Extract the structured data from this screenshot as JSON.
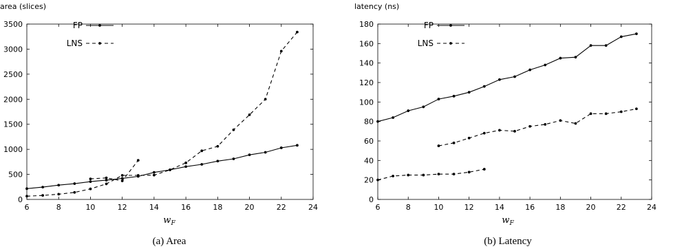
{
  "chart_data": [
    {
      "type": "line",
      "ylabel": "area (slices)",
      "xlabel": "w",
      "xlabel_sub": "F",
      "caption": "(a)  Area",
      "xlim": [
        6,
        24
      ],
      "ylim": [
        0,
        3500
      ],
      "xticks": [
        6,
        8,
        10,
        12,
        14,
        16,
        18,
        20,
        22,
        24
      ],
      "yticks": [
        0,
        500,
        1000,
        1500,
        2000,
        2500,
        3000,
        3500
      ],
      "legend_position": "top-left",
      "series": [
        {
          "name": "FP",
          "style": "solid",
          "segments": [
            [
              [
                6,
                215
              ],
              [
                7,
                245
              ],
              [
                8,
                285
              ],
              [
                9,
                315
              ],
              [
                10,
                355
              ],
              [
                11,
                385
              ],
              [
                12,
                420
              ],
              [
                13,
                460
              ],
              [
                14,
                540
              ],
              [
                15,
                590
              ],
              [
                16,
                655
              ],
              [
                17,
                700
              ],
              [
                18,
                765
              ],
              [
                19,
                810
              ],
              [
                20,
                890
              ],
              [
                21,
                940
              ],
              [
                22,
                1030
              ],
              [
                23,
                1080
              ]
            ]
          ]
        },
        {
          "name": "LNS",
          "style": "dashed",
          "segments": [
            [
              [
                6,
                65
              ],
              [
                7,
                80
              ],
              [
                8,
                105
              ],
              [
                9,
                140
              ],
              [
                10,
                210
              ],
              [
                11,
                310
              ],
              [
                12,
                480
              ],
              [
                13,
                480
              ],
              [
                14,
                485
              ],
              [
                15,
                590
              ],
              [
                16,
                730
              ],
              [
                17,
                970
              ],
              [
                18,
                1060
              ],
              [
                19,
                1390
              ],
              [
                20,
                1690
              ],
              [
                21,
                2000
              ],
              [
                22,
                2960
              ],
              [
                23,
                3340
              ]
            ],
            [
              [
                10,
                410
              ],
              [
                11,
                430
              ],
              [
                12,
                370
              ],
              [
                13,
                780
              ]
            ]
          ]
        }
      ]
    },
    {
      "type": "line",
      "ylabel": "latency (ns)",
      "xlabel": "w",
      "xlabel_sub": "F",
      "caption": "(b)  Latency",
      "xlim": [
        6,
        24
      ],
      "ylim": [
        0,
        180
      ],
      "xticks": [
        6,
        8,
        10,
        12,
        14,
        16,
        18,
        20,
        22,
        24
      ],
      "yticks": [
        0,
        20,
        40,
        60,
        80,
        100,
        120,
        140,
        160,
        180
      ],
      "legend_position": "top-left",
      "series": [
        {
          "name": "FP",
          "style": "solid",
          "segments": [
            [
              [
                6,
                80
              ],
              [
                7,
                84
              ],
              [
                8,
                91
              ],
              [
                9,
                95
              ],
              [
                10,
                103
              ],
              [
                11,
                106
              ],
              [
                12,
                110
              ],
              [
                13,
                116
              ],
              [
                14,
                123
              ],
              [
                15,
                126
              ],
              [
                16,
                133
              ],
              [
                17,
                138
              ],
              [
                18,
                145
              ],
              [
                19,
                146
              ],
              [
                20,
                158
              ],
              [
                21,
                158
              ],
              [
                22,
                167
              ],
              [
                23,
                170
              ]
            ]
          ]
        },
        {
          "name": "LNS",
          "style": "dashed",
          "segments": [
            [
              [
                6,
                20
              ],
              [
                7,
                24
              ],
              [
                8,
                25
              ],
              [
                9,
                25
              ],
              [
                10,
                26
              ],
              [
                11,
                26
              ],
              [
                12,
                28
              ],
              [
                13,
                31
              ]
            ],
            [
              [
                10,
                55
              ],
              [
                11,
                58
              ],
              [
                12,
                63
              ],
              [
                13,
                68
              ],
              [
                14,
                71
              ],
              [
                15,
                70
              ],
              [
                16,
                75
              ],
              [
                17,
                77
              ],
              [
                18,
                81
              ],
              [
                19,
                78
              ],
              [
                20,
                88
              ],
              [
                21,
                88
              ],
              [
                22,
                90
              ],
              [
                23,
                93
              ]
            ]
          ]
        }
      ]
    }
  ]
}
